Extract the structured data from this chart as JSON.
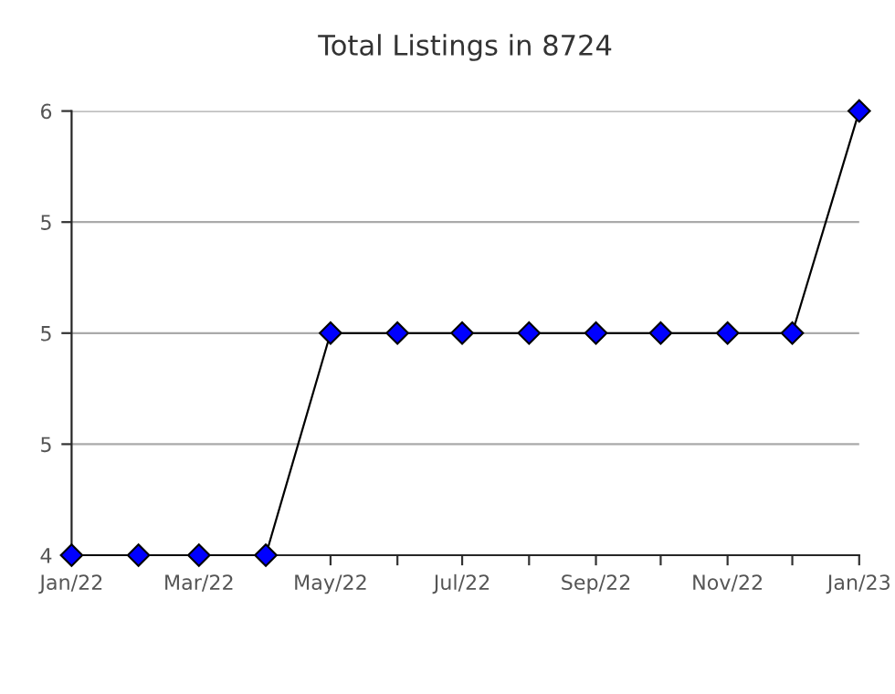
{
  "chart_data": {
    "type": "line",
    "title": "Total Listings in 8724",
    "x": [
      "2022-01",
      "2022-02",
      "2022-03",
      "2022-04",
      "2022-05",
      "2022-06",
      "2022-07",
      "2022-08",
      "2022-09",
      "2022-10",
      "2022-11",
      "2022-12",
      "2023-01"
    ],
    "series": [
      {
        "color": "#0000ff",
        "values": [
          4,
          4,
          4,
          4,
          5,
          5,
          5,
          5,
          5,
          5,
          5,
          5,
          6
        ]
      }
    ],
    "xlim": [
      "2022-01",
      "2023-01"
    ],
    "xticks": [
      {
        "value": "2022-01",
        "label": "Jan/22"
      },
      {
        "value": "2022-02",
        "label": null
      },
      {
        "value": "2022-03",
        "label": "Mar/22"
      },
      {
        "value": "2022-04",
        "label": null
      },
      {
        "value": "2022-05",
        "label": "May/22"
      },
      {
        "value": "2022-06",
        "label": null
      },
      {
        "value": "2022-07",
        "label": "Jul/22"
      },
      {
        "value": "2022-08",
        "label": null
      },
      {
        "value": "2022-09",
        "label": "Sep/22"
      },
      {
        "value": "2022-10",
        "label": null
      },
      {
        "value": "2022-11",
        "label": "Nov/22"
      },
      {
        "value": "2022-12",
        "label": null
      },
      {
        "value": "2023-01",
        "label": "Jan/23"
      }
    ],
    "ylim": [
      4,
      6
    ],
    "yticks": [
      4,
      {
        "value": 4.5,
        "label": "5"
      },
      5,
      {
        "value": 5.5,
        "label": "5"
      },
      6
    ],
    "grid": "y",
    "marker": "diamond",
    "line_style": "solid",
    "legend": false
  }
}
